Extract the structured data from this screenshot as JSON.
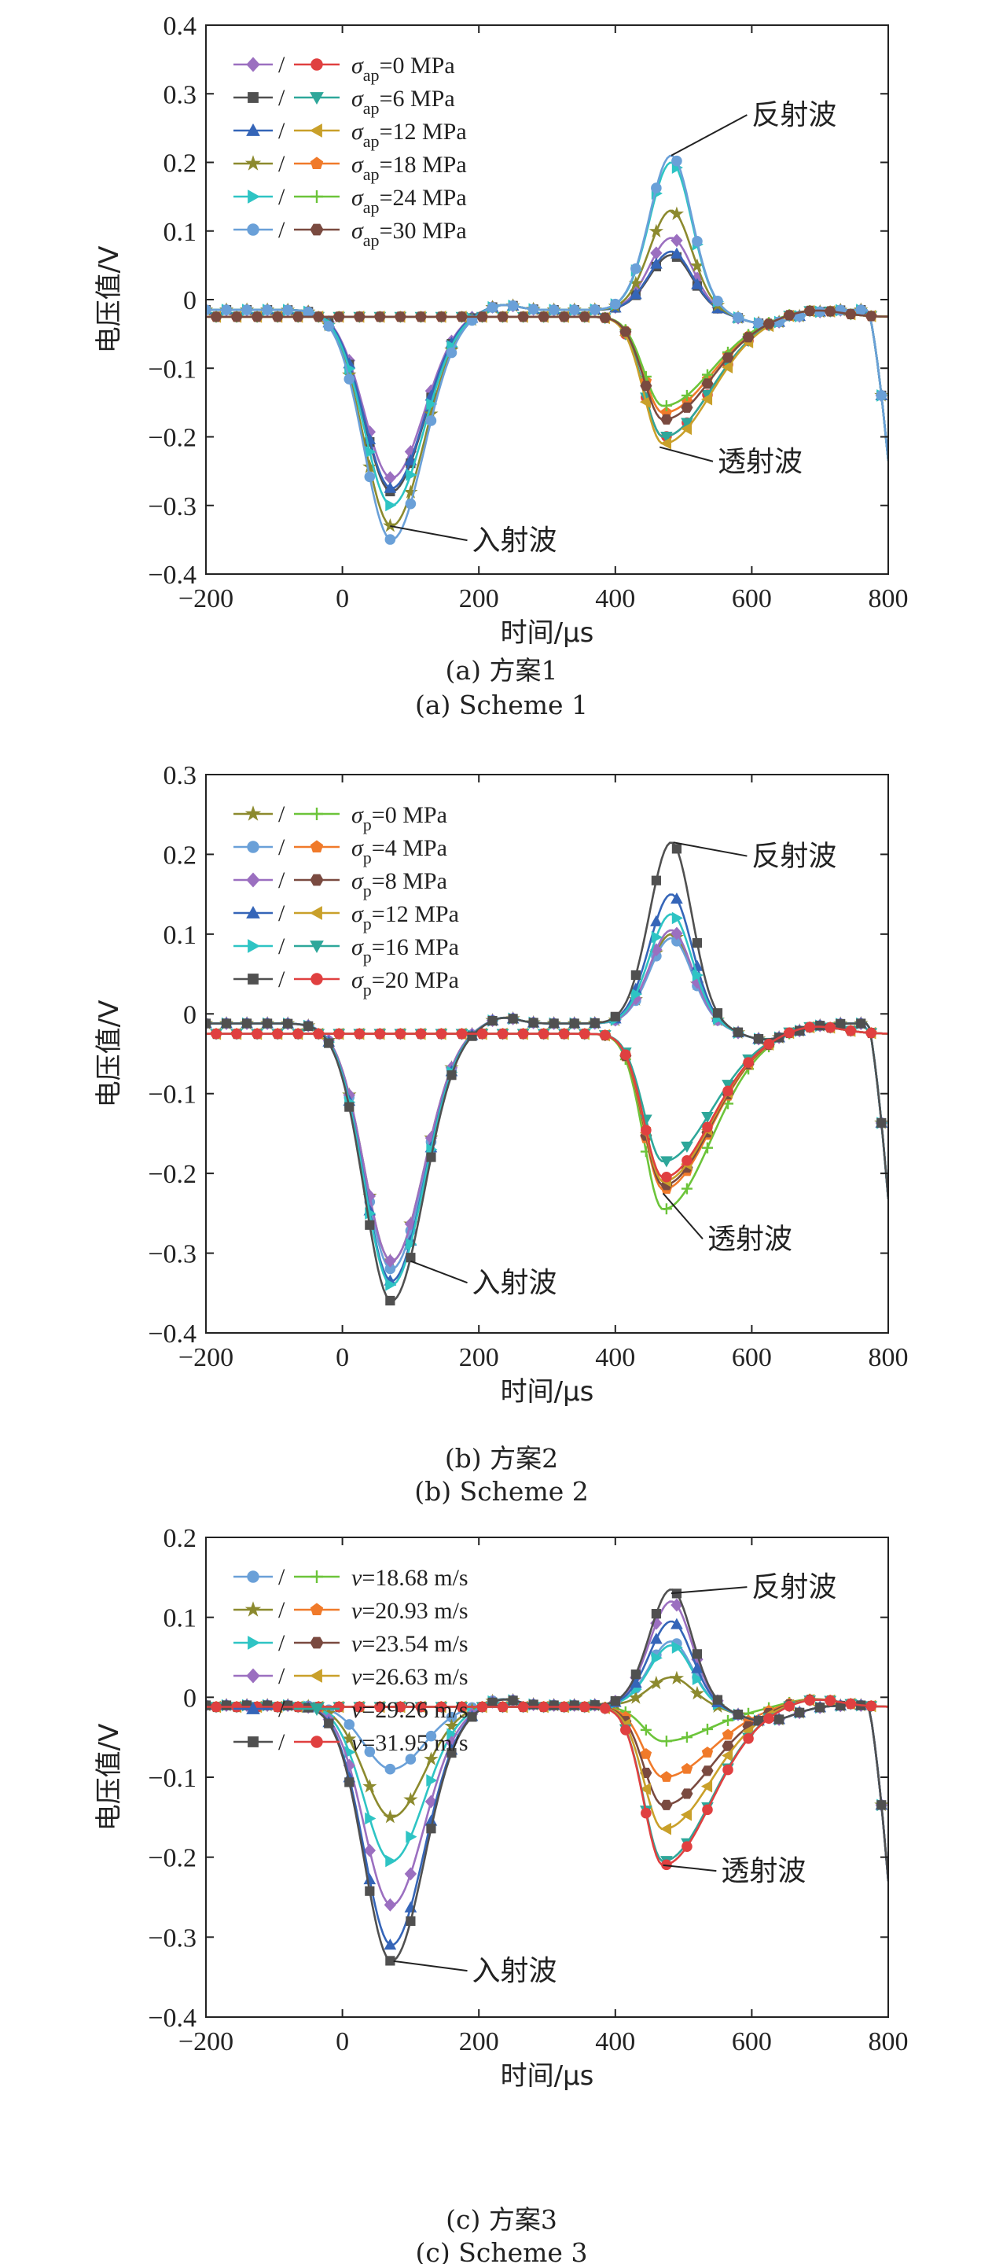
{
  "chart_data": [
    {
      "type": "line",
      "xlabel": "时间/μs",
      "ylabel": "电压值/V",
      "xlim": [
        -200,
        800
      ],
      "ylim": [
        -0.4,
        0.4
      ],
      "xticks": [
        -200,
        0,
        200,
        400,
        600,
        800
      ],
      "yticks": [
        -0.4,
        -0.3,
        -0.2,
        -0.1,
        0,
        0.1,
        0.2,
        0.3,
        0.4
      ],
      "ytick_labels": [
        "-0.4",
        "-0.3",
        "-0.2",
        "-0.1",
        "0",
        "0.1",
        "0.2",
        "0.3",
        "0.4"
      ],
      "caption_cn": "(a) 方案1",
      "caption_en": "(a) Scheme 1",
      "legend_position": "top-left",
      "legend": [
        {
          "text": "σap=0 MPa",
          "sym": "σ",
          "sub": "ap",
          "rest": "=0 MPa",
          "color_left": "#9b6fc0",
          "marker_left": "diamond",
          "color_right": "#e04040",
          "marker_right": "circle"
        },
        {
          "text": "σap=6 MPa",
          "sym": "σ",
          "sub": "ap",
          "rest": "=6 MPa",
          "color_left": "#505050",
          "marker_left": "square",
          "color_right": "#2ea79a",
          "marker_right": "tri_down"
        },
        {
          "text": "σap=12 MPa",
          "sym": "σ",
          "sub": "ap",
          "rest": "=12 MPa",
          "color_left": "#3565b8",
          "marker_left": "tri_up",
          "color_right": "#c9a02a",
          "marker_right": "tri_left"
        },
        {
          "text": "σap=18 MPa",
          "sym": "σ",
          "sub": "ap",
          "rest": "=18 MPa",
          "color_left": "#8c8a2e",
          "marker_left": "star",
          "color_right": "#f07a2a",
          "marker_right": "pentagon"
        },
        {
          "text": "σap=24 MPa",
          "sym": "σ",
          "sub": "ap",
          "rest": "=24 MPa",
          "color_left": "#2ec4c4",
          "marker_left": "tri_right",
          "color_right": "#6cc43a",
          "marker_right": "plus"
        },
        {
          "text": "σap=30 MPa",
          "sym": "σ",
          "sub": "ap",
          "rest": "=30 MPa",
          "color_left": "#6aa0d8",
          "marker_left": "circle",
          "color_right": "#7a4a40",
          "marker_right": "hexagon"
        }
      ],
      "incident_peaks": [
        -0.26,
        -0.28,
        -0.275,
        -0.33,
        -0.3,
        -0.35
      ],
      "reflected_peaks": [
        0.09,
        0.065,
        0.07,
        0.13,
        0.2,
        0.21
      ],
      "transmitted_peaks": [
        -0.2,
        -0.2,
        -0.21,
        -0.165,
        -0.155,
        -0.175
      ],
      "incident_baseline": -0.015,
      "transmitted_baseline": -0.025,
      "annotations": {
        "incident": "入射波",
        "reflected": "反射波",
        "transmitted": "透射波"
      },
      "annotation_points": {
        "incident": [
          70,
          -0.33
        ],
        "reflected": [
          482,
          0.21
        ],
        "transmitted": [
          465,
          -0.215
        ]
      },
      "annotation_text_at": {
        "incident": [
          190,
          -0.36
        ],
        "reflected": [
          600,
          0.26
        ],
        "transmitted": [
          550,
          -0.245
        ]
      }
    },
    {
      "type": "line",
      "xlabel": "时间/μs",
      "ylabel": "电压值/V",
      "xlim": [
        -200,
        800
      ],
      "ylim": [
        -0.4,
        0.3
      ],
      "xticks": [
        -200,
        0,
        200,
        400,
        600,
        800
      ],
      "yticks": [
        -0.4,
        -0.3,
        -0.2,
        -0.1,
        0,
        0.1,
        0.2,
        0.3
      ],
      "ytick_labels": [
        "-0.4",
        "-0.3",
        "-0.2",
        "-0.1",
        "0",
        "0.1",
        "0.2",
        "0.3"
      ],
      "caption_cn": "(b) 方案2",
      "caption_en": "(b) Scheme 2",
      "legend_position": "top-left",
      "legend": [
        {
          "text": "σp=0 MPa",
          "sym": "σ",
          "sub": "p",
          "rest": "=0 MPa",
          "color_left": "#8c8a2e",
          "marker_left": "star",
          "color_right": "#6cc43a",
          "marker_right": "plus"
        },
        {
          "text": "σp=4 MPa",
          "sym": "σ",
          "sub": "p",
          "rest": "=4 MPa",
          "color_left": "#6aa0d8",
          "marker_left": "circle",
          "color_right": "#f07a2a",
          "marker_right": "pentagon"
        },
        {
          "text": "σp=8 MPa",
          "sym": "σ",
          "sub": "p",
          "rest": "=8 MPa",
          "color_left": "#9b6fc0",
          "marker_left": "diamond",
          "color_right": "#7a4a40",
          "marker_right": "hexagon"
        },
        {
          "text": "σp=12 MPa",
          "sym": "σ",
          "sub": "p",
          "rest": "=12 MPa",
          "color_left": "#3565b8",
          "marker_left": "tri_up",
          "color_right": "#c9a02a",
          "marker_right": "tri_left"
        },
        {
          "text": "σp=16 MPa",
          "sym": "σ",
          "sub": "p",
          "rest": "=16 MPa",
          "color_left": "#2ec4c4",
          "marker_left": "tri_right",
          "color_right": "#2ea79a",
          "marker_right": "tri_down"
        },
        {
          "text": "σp=20 MPa",
          "sym": "σ",
          "sub": "p",
          "rest": "=20 MPa",
          "color_left": "#505050",
          "marker_left": "square",
          "color_right": "#e04040",
          "marker_right": "circle"
        }
      ],
      "incident_peaks": [
        -0.31,
        -0.32,
        -0.31,
        -0.335,
        -0.34,
        -0.36
      ],
      "reflected_peaks": [
        0.1,
        0.095,
        0.105,
        0.15,
        0.125,
        0.215
      ],
      "transmitted_peaks": [
        -0.245,
        -0.22,
        -0.215,
        -0.21,
        -0.185,
        -0.205
      ],
      "incident_baseline": -0.012,
      "transmitted_baseline": -0.025,
      "annotations": {
        "incident": "入射波",
        "reflected": "反射波",
        "transmitted": "透射波"
      },
      "annotation_points": {
        "incident": [
          100,
          -0.31
        ],
        "reflected": [
          485,
          0.215
        ],
        "transmitted": [
          470,
          -0.225
        ]
      },
      "annotation_text_at": {
        "incident": [
          190,
          -0.345
        ],
        "reflected": [
          600,
          0.19
        ],
        "transmitted": [
          535,
          -0.29
        ]
      }
    },
    {
      "type": "line",
      "xlabel": "时间/μs",
      "ylabel": "电压值/V",
      "xlim": [
        -200,
        800
      ],
      "ylim": [
        -0.4,
        0.2
      ],
      "xticks": [
        -200,
        0,
        200,
        400,
        600,
        800
      ],
      "yticks": [
        -0.4,
        -0.3,
        -0.2,
        -0.1,
        0,
        0.1,
        0.2
      ],
      "ytick_labels": [
        "-0.4",
        "-0.3",
        "-0.2",
        "-0.1",
        "0",
        "0.1",
        "0.2"
      ],
      "caption_cn": "(c) 方案3",
      "caption_en": "(c) Scheme 3",
      "legend_position": "top-left",
      "legend": [
        {
          "text": "v=18.68 m/s",
          "sym": "v",
          "sub": "",
          "rest": "=18.68 m/s",
          "color_left": "#6aa0d8",
          "marker_left": "circle",
          "color_right": "#6cc43a",
          "marker_right": "plus"
        },
        {
          "text": "v=20.93 m/s",
          "sym": "v",
          "sub": "",
          "rest": "=20.93 m/s",
          "color_left": "#8c8a2e",
          "marker_left": "star",
          "color_right": "#f07a2a",
          "marker_right": "pentagon"
        },
        {
          "text": "v=23.54 m/s",
          "sym": "v",
          "sub": "",
          "rest": "=23.54 m/s",
          "color_left": "#2ec4c4",
          "marker_left": "tri_right",
          "color_right": "#7a4a40",
          "marker_right": "hexagon"
        },
        {
          "text": "v=26.63 m/s",
          "sym": "v",
          "sub": "",
          "rest": "=26.63 m/s",
          "color_left": "#9b6fc0",
          "marker_left": "diamond",
          "color_right": "#c9a02a",
          "marker_right": "tri_left"
        },
        {
          "text": "v=29.26 m/s",
          "sym": "v",
          "sub": "",
          "rest": "=29.26 m/s",
          "color_left": "#3565b8",
          "marker_left": "tri_up",
          "color_right": "#2ea79a",
          "marker_right": "tri_down"
        },
        {
          "text": "v=31.95 m/s",
          "sym": "v",
          "sub": "",
          "rest": "=31.95 m/s",
          "color_left": "#505050",
          "marker_left": "square",
          "color_right": "#e04040",
          "marker_right": "circle"
        }
      ],
      "incident_peaks": [
        -0.09,
        -0.15,
        -0.205,
        -0.26,
        -0.31,
        -0.33
      ],
      "reflected_peaks": [
        0.07,
        0.025,
        0.065,
        0.12,
        0.095,
        0.135
      ],
      "transmitted_peaks": [
        -0.055,
        -0.1,
        -0.135,
        -0.165,
        -0.205,
        -0.21
      ],
      "incident_baseline": -0.01,
      "transmitted_baseline": -0.012,
      "annotations": {
        "incident": "入射波",
        "reflected": "反射波",
        "transmitted": "透射波"
      },
      "annotation_points": {
        "incident": [
          75,
          -0.33
        ],
        "reflected": [
          482,
          0.13
        ],
        "transmitted": [
          470,
          -0.21
        ]
      },
      "annotation_text_at": {
        "incident": [
          190,
          -0.35
        ],
        "reflected": [
          600,
          0.13
        ],
        "transmitted": [
          555,
          -0.225
        ]
      }
    }
  ]
}
